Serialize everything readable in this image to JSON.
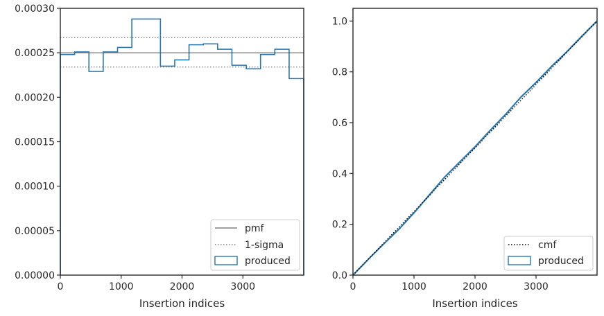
{
  "chart_data": [
    {
      "type": "histogram",
      "xlabel": "Insertion indices",
      "ylabel": "",
      "xlim": [
        0,
        4000
      ],
      "ylim": [
        0,
        0.0003
      ],
      "xticks": [
        0,
        1000,
        2000,
        3000
      ],
      "xtick_labels": [
        "0",
        "1000",
        "2000",
        "3000"
      ],
      "yticks": [
        0,
        5e-05,
        0.0001,
        0.00015,
        0.0002,
        0.00025,
        0.0003
      ],
      "ytick_labels": [
        "0.00000",
        "0.00005",
        "0.00010",
        "0.00015",
        "0.00020",
        "0.00025",
        "0.00030"
      ],
      "bin_edges": [
        0,
        235,
        470,
        705,
        940,
        1175,
        1410,
        1645,
        1880,
        2115,
        2350,
        2585,
        2820,
        3055,
        3290,
        3525,
        3760,
        4000
      ],
      "series": [
        {
          "name": "produced",
          "kind": "step-histogram",
          "values": [
            0.000248,
            0.000251,
            0.000229,
            0.000251,
            0.000256,
            0.000288,
            0.000288,
            0.000235,
            0.000242,
            0.000259,
            0.00026,
            0.000254,
            0.000236,
            0.000232,
            0.000248,
            0.000254,
            0.000221
          ]
        }
      ],
      "reference_lines": [
        {
          "name": "pmf",
          "style": "solid",
          "value": 0.00025
        },
        {
          "name": "1-sigma",
          "style": "dotted",
          "values": [
            0.000267,
            0.000234
          ]
        }
      ],
      "legend": {
        "placement": "lower-right",
        "entries": [
          "pmf",
          "1-sigma",
          "produced"
        ]
      },
      "colors": {
        "produced": "#2878b0",
        "pmf": "#808080",
        "sigma": "#808080"
      }
    },
    {
      "type": "line",
      "xlabel": "Insertion indices",
      "ylabel": "",
      "xlim": [
        0,
        4000
      ],
      "ylim": [
        0,
        1.05
      ],
      "xticks": [
        0,
        1000,
        2000,
        3000
      ],
      "xtick_labels": [
        "0",
        "1000",
        "2000",
        "3000"
      ],
      "yticks": [
        0,
        0.2,
        0.4,
        0.6,
        0.8,
        1.0
      ],
      "ytick_labels": [
        "0.0",
        "0.2",
        "0.4",
        "0.6",
        "0.8",
        "1.0"
      ],
      "series": [
        {
          "name": "cmf",
          "style": "dotted",
          "x": [
            0,
            4000
          ],
          "y": [
            0,
            1.0
          ]
        },
        {
          "name": "produced",
          "style": "solid",
          "x": [
            0,
            250,
            500,
            750,
            1000,
            1250,
            1500,
            1750,
            2000,
            2250,
            2500,
            2750,
            3000,
            3250,
            3500,
            3750,
            4000
          ],
          "y": [
            0,
            0.062,
            0.122,
            0.18,
            0.245,
            0.315,
            0.385,
            0.445,
            0.505,
            0.57,
            0.632,
            0.7,
            0.758,
            0.82,
            0.878,
            0.94,
            1.0
          ]
        }
      ],
      "legend": {
        "placement": "lower-right",
        "entries": [
          "cmf",
          "produced"
        ]
      },
      "colors": {
        "produced": "#2878b0",
        "cmf": "#000000"
      }
    }
  ]
}
